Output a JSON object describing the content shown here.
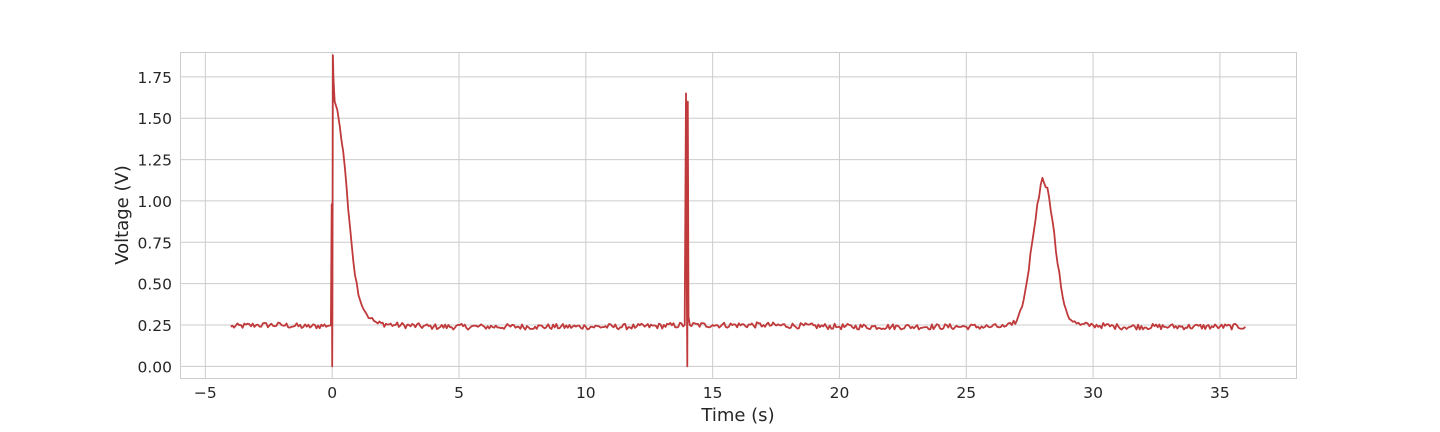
{
  "chart_data": {
    "type": "line",
    "title": "",
    "xlabel": "Time (s)",
    "ylabel": "Voltage (V)",
    "xlim": [
      -6,
      38
    ],
    "ylim": [
      -0.07,
      1.9
    ],
    "xticks": [
      -5,
      0,
      5,
      10,
      15,
      20,
      25,
      30,
      35
    ],
    "xtick_labels": [
      "−5",
      "0",
      "5",
      "10",
      "15",
      "20",
      "25",
      "30",
      "35"
    ],
    "yticks": [
      0.0,
      0.25,
      0.5,
      0.75,
      1.0,
      1.25,
      1.5,
      1.75
    ],
    "ytick_labels": [
      "0.00",
      "0.25",
      "0.50",
      "0.75",
      "1.00",
      "1.25",
      "1.50",
      "1.75"
    ],
    "grid": true,
    "legend": "none",
    "series": [
      {
        "color": "#c0393b",
        "x": [
          -4.0,
          -3.0,
          -2.0,
          -1.0,
          -0.05,
          -0.02,
          -0.01,
          0.0,
          0.01,
          0.03,
          0.05,
          0.08,
          0.1,
          0.2,
          0.3,
          0.5,
          0.7,
          0.9,
          1.1,
          1.3,
          1.5,
          1.8,
          2.5,
          4.0,
          6.0,
          8.0,
          10.0,
          12.0,
          13.9,
          13.95,
          13.98,
          14.0,
          14.02,
          14.05,
          14.1,
          15.0,
          17.0,
          20.0,
          23.0,
          25.0,
          26.0,
          26.5,
          26.8,
          27.0,
          27.2,
          27.4,
          27.6,
          27.8,
          28.0,
          28.2,
          28.4,
          28.6,
          28.8,
          29.0,
          29.2,
          29.5,
          30.0,
          31.0,
          33.0,
          35.0,
          36.0
        ],
        "y": [
          0.24,
          0.25,
          0.25,
          0.24,
          0.25,
          0.98,
          0.6,
          0.0,
          0.3,
          1.88,
          1.75,
          1.65,
          1.6,
          1.55,
          1.45,
          1.2,
          0.85,
          0.55,
          0.4,
          0.33,
          0.29,
          0.26,
          0.25,
          0.24,
          0.24,
          0.24,
          0.24,
          0.24,
          0.25,
          1.65,
          0.5,
          0.0,
          1.6,
          0.3,
          0.25,
          0.25,
          0.25,
          0.24,
          0.24,
          0.24,
          0.24,
          0.24,
          0.25,
          0.28,
          0.36,
          0.52,
          0.75,
          0.98,
          1.14,
          1.08,
          0.88,
          0.62,
          0.42,
          0.31,
          0.27,
          0.25,
          0.25,
          0.24,
          0.24,
          0.24,
          0.24
        ]
      }
    ]
  }
}
